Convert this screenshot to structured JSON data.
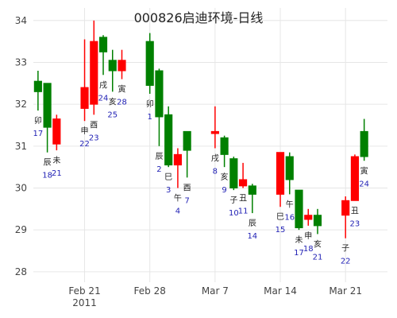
{
  "chart_data": {
    "type": "candlestick",
    "title": "000826启迪环境-日线",
    "ylim": [
      27.75,
      34.3
    ],
    "yticks": [
      28,
      29,
      30,
      31,
      32,
      33,
      34
    ],
    "x_tick_labels": [
      {
        "date": "2011-02-21",
        "label": "Feb 21",
        "sublabel": "2011"
      },
      {
        "date": "2011-02-28",
        "label": "Feb 28",
        "sublabel": ""
      },
      {
        "date": "2011-03-07",
        "label": "Mar 7",
        "sublabel": ""
      },
      {
        "date": "2011-03-14",
        "label": "Mar 14",
        "sublabel": ""
      },
      {
        "date": "2011-03-21",
        "label": "Mar 21",
        "sublabel": ""
      }
    ],
    "xlim": [
      "2011-02-15T12:00",
      "2011-03-25T12:00"
    ],
    "colors": {
      "increasing": "#ff0000",
      "decreasing": "#008000",
      "number": "#1f1fb4",
      "branch": "#222222"
    },
    "candles": [
      {
        "date": "2011-02-16",
        "open": 32.55,
        "high": 32.8,
        "low": 31.85,
        "close": 32.3,
        "num": "17",
        "branch": "卯"
      },
      {
        "date": "2011-02-17",
        "open": 32.5,
        "high": 32.5,
        "low": 30.85,
        "close": 31.45,
        "num": "18",
        "branch": "辰"
      },
      {
        "date": "2011-02-18",
        "open": 31.05,
        "high": 31.75,
        "low": 30.9,
        "close": 31.65,
        "num": "21",
        "branch": "未"
      },
      {
        "date": "2011-02-21",
        "open": 31.9,
        "high": 33.55,
        "low": 31.6,
        "close": 32.4,
        "num": "22",
        "branch": "申"
      },
      {
        "date": "2011-02-22",
        "open": 32.0,
        "high": 34.0,
        "low": 31.75,
        "close": 33.5,
        "num": "23",
        "branch": "酉"
      },
      {
        "date": "2011-02-23",
        "open": 33.6,
        "high": 33.65,
        "low": 32.7,
        "close": 33.25,
        "num": "24",
        "branch": "戌"
      },
      {
        "date": "2011-02-24",
        "open": 33.05,
        "high": 33.3,
        "low": 32.3,
        "close": 32.8,
        "num": "25",
        "branch": "亥"
      },
      {
        "date": "2011-02-25",
        "open": 32.8,
        "high": 33.3,
        "low": 32.6,
        "close": 33.05,
        "num": "28",
        "branch": "寅"
      },
      {
        "date": "2011-02-28",
        "open": 33.5,
        "high": 33.7,
        "low": 32.25,
        "close": 32.45,
        "num": "1",
        "branch": "卯"
      },
      {
        "date": "2011-03-01",
        "open": 32.8,
        "high": 32.85,
        "low": 31.0,
        "close": 31.7,
        "num": "2",
        "branch": "辰"
      },
      {
        "date": "2011-03-02",
        "open": 31.75,
        "high": 31.95,
        "low": 30.5,
        "close": 30.55,
        "num": "3",
        "branch": "巳"
      },
      {
        "date": "2011-03-03",
        "open": 30.55,
        "high": 30.95,
        "low": 30.0,
        "close": 30.8,
        "num": "4",
        "branch": "午"
      },
      {
        "date": "2011-03-04",
        "open": 31.35,
        "high": 31.35,
        "low": 30.25,
        "close": 30.9,
        "num": "7",
        "branch": "酉"
      },
      {
        "date": "2011-03-07",
        "open": 31.3,
        "high": 31.95,
        "low": 30.95,
        "close": 31.35,
        "num": "8",
        "branch": "戌"
      },
      {
        "date": "2011-03-08",
        "open": 31.2,
        "high": 31.25,
        "low": 30.5,
        "close": 30.8,
        "num": "9",
        "branch": "亥"
      },
      {
        "date": "2011-03-09",
        "open": 30.7,
        "high": 30.75,
        "low": 29.95,
        "close": 30.0,
        "num": "10",
        "branch": "子"
      },
      {
        "date": "2011-03-10",
        "open": 30.05,
        "high": 30.6,
        "low": 30.0,
        "close": 30.2,
        "num": "11",
        "branch": "丑"
      },
      {
        "date": "2011-03-11",
        "open": 30.05,
        "high": 30.1,
        "low": 29.4,
        "close": 29.85,
        "num": "14",
        "branch": "辰"
      },
      {
        "date": "2011-03-14",
        "open": 29.85,
        "high": 30.85,
        "low": 29.55,
        "close": 30.85,
        "num": "15",
        "branch": "巳"
      },
      {
        "date": "2011-03-15",
        "open": 30.75,
        "high": 30.85,
        "low": 29.85,
        "close": 30.2,
        "num": "16",
        "branch": "午"
      },
      {
        "date": "2011-03-16",
        "open": 29.95,
        "high": 29.95,
        "low": 29.0,
        "close": 29.05,
        "num": "17",
        "branch": "未"
      },
      {
        "date": "2011-03-17",
        "open": 29.25,
        "high": 29.5,
        "low": 29.1,
        "close": 29.35,
        "num": "18",
        "branch": "申"
      },
      {
        "date": "2011-03-18",
        "open": 29.35,
        "high": 29.5,
        "low": 28.9,
        "close": 29.1,
        "num": "21",
        "branch": "亥"
      },
      {
        "date": "2011-03-21",
        "open": 29.35,
        "high": 29.8,
        "low": 28.8,
        "close": 29.7,
        "num": "22",
        "branch": "子"
      },
      {
        "date": "2011-03-22",
        "open": 29.7,
        "high": 30.8,
        "low": 29.7,
        "close": 30.75,
        "num": "23",
        "branch": "丑"
      },
      {
        "date": "2011-03-23",
        "open": 31.35,
        "high": 31.65,
        "low": 30.65,
        "close": 30.75,
        "num": "24",
        "branch": "寅"
      }
    ]
  }
}
